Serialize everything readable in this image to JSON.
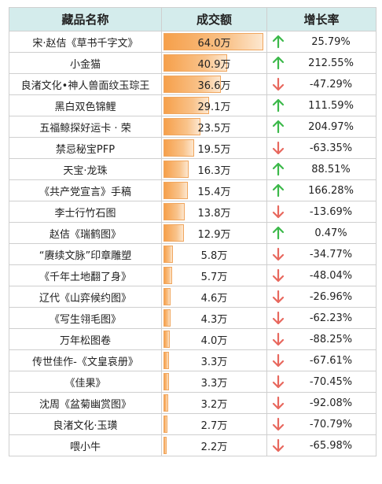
{
  "table": {
    "headers": {
      "name": "藏品名称",
      "volume": "成交额",
      "growth": "增长率"
    },
    "colors": {
      "up": "#3cb94a",
      "down": "#e8685e",
      "bar": "#f6a04b"
    },
    "bar_max": 64.0,
    "rows": [
      {
        "name": "宋·赵佶《草书千字文》",
        "amount": 64.0,
        "volume": "64.0万",
        "trend": "up",
        "growth": "25.79%"
      },
      {
        "name": "小金猫",
        "amount": 40.9,
        "volume": "40.9万",
        "trend": "up",
        "growth": "212.55%"
      },
      {
        "name": "良渚文化•神人兽面纹玉琮王",
        "amount": 36.6,
        "volume": "36.6万",
        "trend": "down",
        "growth": "-47.29%"
      },
      {
        "name": "黑白双色锦鲤",
        "amount": 29.1,
        "volume": "29.1万",
        "trend": "up",
        "growth": "111.59%"
      },
      {
        "name": "五福鲸探好运卡 · 荣",
        "amount": 23.5,
        "volume": "23.5万",
        "trend": "up",
        "growth": "204.97%"
      },
      {
        "name": "禁忌秘宝PFP",
        "amount": 19.5,
        "volume": "19.5万",
        "trend": "down",
        "growth": "-63.35%"
      },
      {
        "name": "天宝·龙珠",
        "amount": 16.3,
        "volume": "16.3万",
        "trend": "up",
        "growth": "88.51%"
      },
      {
        "name": "《共产党宣言》手稿",
        "amount": 15.4,
        "volume": "15.4万",
        "trend": "up",
        "growth": "166.28%"
      },
      {
        "name": "李士行竹石图",
        "amount": 13.8,
        "volume": "13.8万",
        "trend": "down",
        "growth": "-13.69%"
      },
      {
        "name": "赵佶《瑞鹤图》",
        "amount": 12.9,
        "volume": "12.9万",
        "trend": "up",
        "growth": "0.47%"
      },
      {
        "name": "“赓续文脉”印章雕塑",
        "amount": 5.8,
        "volume": "5.8万",
        "trend": "down",
        "growth": "-34.77%"
      },
      {
        "name": "《千年土地翻了身》",
        "amount": 5.7,
        "volume": "5.7万",
        "trend": "down",
        "growth": "-48.04%"
      },
      {
        "name": "辽代《山弈候约图》",
        "amount": 4.6,
        "volume": "4.6万",
        "trend": "down",
        "growth": "-26.96%"
      },
      {
        "name": "《写生翎毛图》",
        "amount": 4.3,
        "volume": "4.3万",
        "trend": "down",
        "growth": "-62.23%"
      },
      {
        "name": "万年松图卷",
        "amount": 4.0,
        "volume": "4.0万",
        "trend": "down",
        "growth": "-88.25%"
      },
      {
        "name": "传世佳作-《文皇哀册》",
        "amount": 3.3,
        "volume": "3.3万",
        "trend": "down",
        "growth": "-67.61%"
      },
      {
        "name": "《佳果》",
        "amount": 3.3,
        "volume": "3.3万",
        "trend": "down",
        "growth": "-70.45%"
      },
      {
        "name": "沈周《盆菊幽赏图》",
        "amount": 3.2,
        "volume": "3.2万",
        "trend": "down",
        "growth": "-92.08%"
      },
      {
        "name": "良渚文化·玉璜",
        "amount": 2.7,
        "volume": "2.7万",
        "trend": "down",
        "growth": "-70.79%"
      },
      {
        "name": "喂小牛",
        "amount": 2.2,
        "volume": "2.2万",
        "trend": "down",
        "growth": "-65.98%"
      }
    ]
  }
}
